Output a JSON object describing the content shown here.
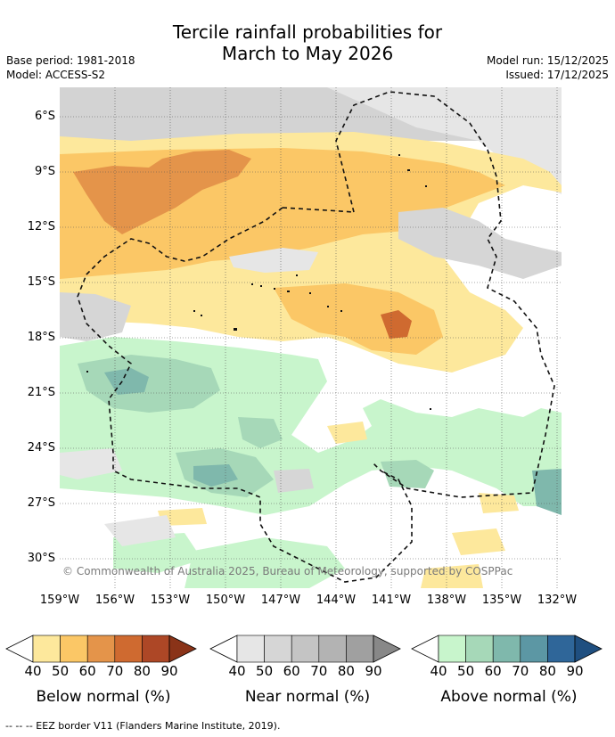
{
  "title": {
    "line1": "Tercile rainfall probabilities for",
    "line2": "March to May 2026"
  },
  "meta": {
    "base_period": "Base period: 1981-2018",
    "model": "Model: ACCESS-S2",
    "model_run": "Model run: 15/12/2025",
    "issued": "Issued: 17/12/2025"
  },
  "map": {
    "lat_labels": [
      "6°S",
      "9°S",
      "12°S",
      "15°S",
      "18°S",
      "21°S",
      "24°S",
      "27°S",
      "30°S"
    ],
    "lon_labels": [
      "159°W",
      "156°W",
      "153°W",
      "150°W",
      "147°W",
      "144°W",
      "141°W",
      "138°W",
      "135°W",
      "132°W"
    ],
    "copyright": "© Commonwealth of Australia 2025, Bureau of Meteorology, supported by COSPPac"
  },
  "legends": [
    {
      "title": "Below normal (%)",
      "ticks": [
        "40",
        "50",
        "60",
        "70",
        "80",
        "90"
      ],
      "colors": [
        "#fde89c",
        "#fbc766",
        "#e4944a",
        "#cf6a30",
        "#ad4726",
        "#8a3318"
      ]
    },
    {
      "title": "Near normal (%)",
      "ticks": [
        "40",
        "50",
        "60",
        "70",
        "80",
        "90"
      ],
      "colors": [
        "#e6e6e6",
        "#d6d6d6",
        "#c4c4c4",
        "#b3b3b3",
        "#a0a0a0",
        "#888888"
      ]
    },
    {
      "title": "Above normal (%)",
      "ticks": [
        "40",
        "50",
        "60",
        "70",
        "80",
        "90"
      ],
      "colors": [
        "#c8f5cc",
        "#a6d8b8",
        "#7fb8ac",
        "#5c97a4",
        "#2f6699",
        "#1f4f80"
      ]
    }
  ],
  "footer": "--  --  -- EEZ border V11 (Flanders Marine Institute, 2019)."
}
